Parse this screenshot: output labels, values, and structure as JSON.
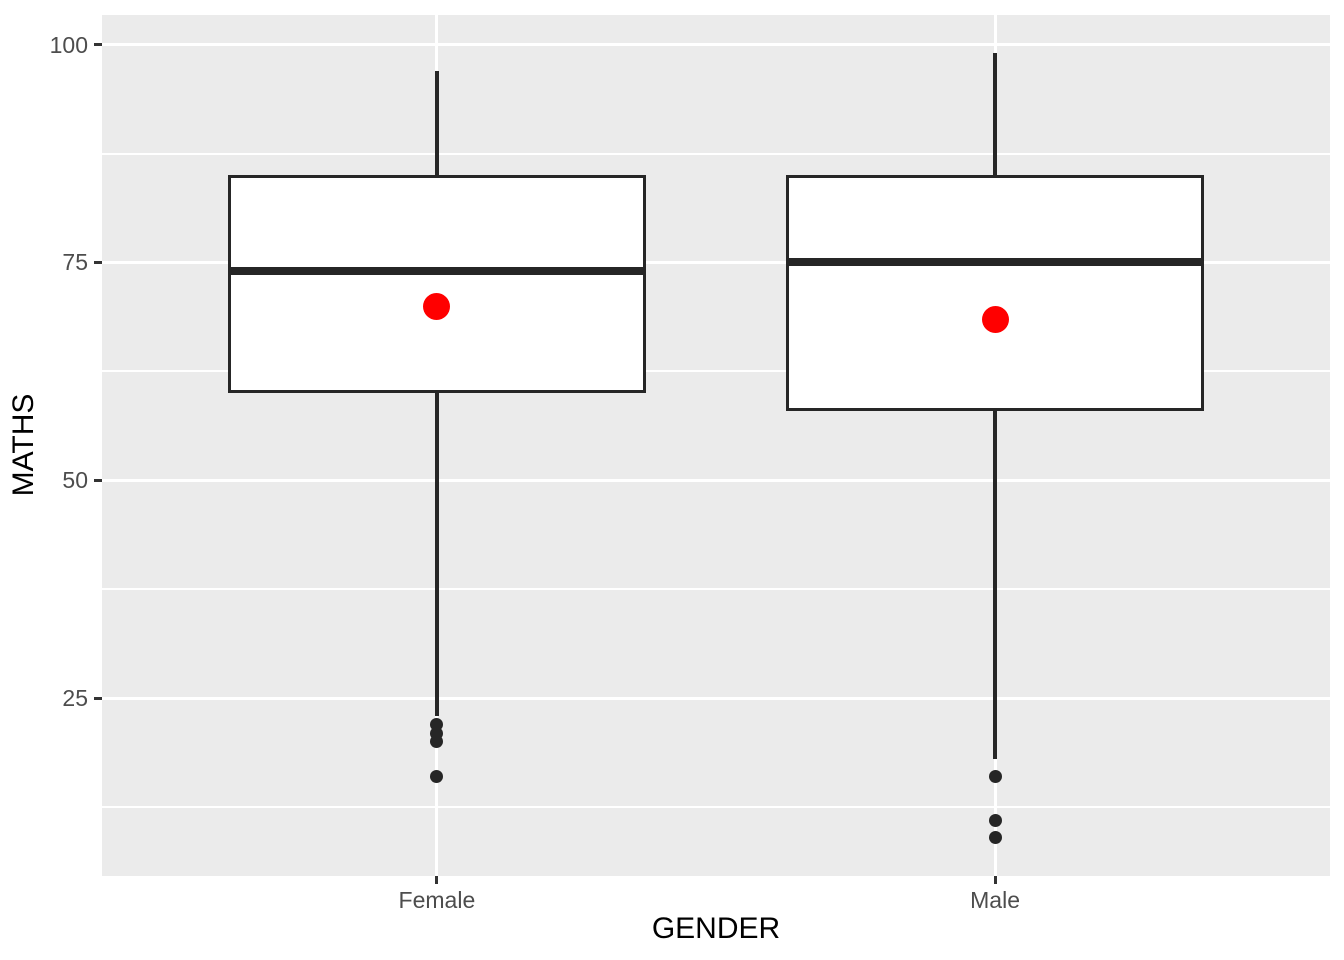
{
  "chart_data": {
    "type": "boxplot",
    "title": "",
    "xlabel": "GENDER",
    "ylabel": "MATHS",
    "categories": [
      "Female",
      "Male"
    ],
    "y_ticks": [
      100,
      75,
      50,
      25
    ],
    "y_minor_ticks": [
      87.5,
      62.5,
      37.5,
      12.5
    ],
    "ylim": [
      4.6,
      103.4
    ],
    "grid": {
      "major": true,
      "minor": true,
      "gridline_color_on_grey_panel": true
    },
    "legend": "none",
    "series": [
      {
        "name": "Female",
        "whisker_min": 23,
        "q1": 60,
        "median": 74,
        "q3": 85,
        "whisker_max": 97,
        "mean": 70,
        "outliers": [
          22,
          21,
          20,
          16
        ]
      },
      {
        "name": "Male",
        "whisker_min": 18,
        "q1": 58,
        "median": 75,
        "q3": 85,
        "whisker_max": 99,
        "mean": 68.5,
        "outliers": [
          16,
          11,
          9
        ]
      }
    ],
    "colors": {
      "panel_background": "#EBEBEB",
      "gridline": "#FFFFFF",
      "box_fill": "#FFFFFF",
      "box_stroke": "#262626",
      "outlier_point": "#262626",
      "mean_point": "#FF0000",
      "tick_label": "#4D4D4D",
      "axis_title": "#000000",
      "tick_mark": "#333333"
    }
  }
}
